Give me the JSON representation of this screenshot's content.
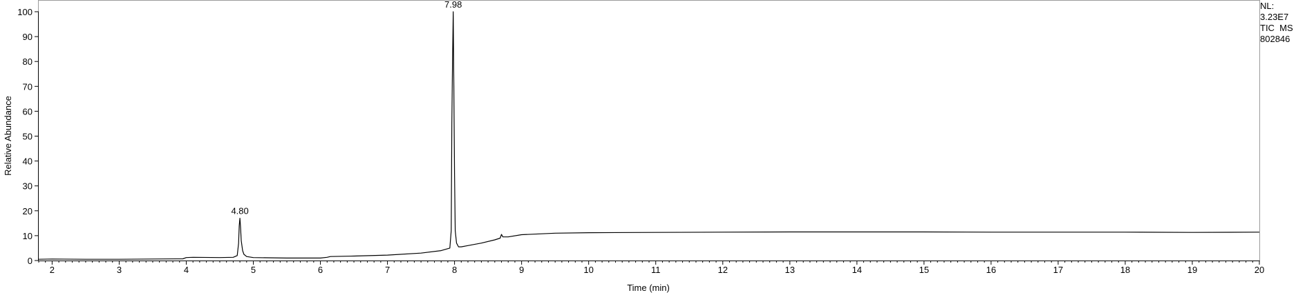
{
  "info": {
    "nl_label": "NL:",
    "nl_value": "3.23E7",
    "trace": "TIC  MS",
    "sample": "802846"
  },
  "chart_data": {
    "type": "line",
    "xlabel": "Time (min)",
    "ylabel": "Relative Abundance",
    "xlim": [
      1.8,
      20
    ],
    "ylim": [
      0,
      100
    ],
    "xticks": [
      2,
      3,
      4,
      5,
      6,
      7,
      8,
      9,
      10,
      11,
      12,
      13,
      14,
      15,
      16,
      17,
      18,
      19,
      20
    ],
    "yticks": [
      0,
      10,
      20,
      30,
      40,
      50,
      60,
      70,
      80,
      90,
      100
    ],
    "grid": false,
    "peak_labels": [
      {
        "x": 4.8,
        "y": 17,
        "text": "4.80"
      },
      {
        "x": 7.98,
        "y": 100,
        "text": "7.98"
      }
    ],
    "series": [
      {
        "x": [
          1.8,
          2.0,
          2.5,
          3.0,
          3.5,
          3.95,
          4.0,
          4.1,
          4.5,
          4.7,
          4.76,
          4.78,
          4.79,
          4.8,
          4.81,
          4.82,
          4.84,
          4.86,
          4.9,
          5.0,
          5.5,
          6.0,
          6.1,
          6.15,
          6.5,
          7.0,
          7.5,
          7.8,
          7.93,
          7.95,
          7.96,
          7.97,
          7.98,
          7.99,
          8.0,
          8.01,
          8.03,
          8.06,
          8.1,
          8.2,
          8.4,
          8.6,
          8.68,
          8.7,
          8.72,
          8.8,
          9.0,
          9.5,
          10.0,
          11.0,
          12.0,
          13.0,
          14.0,
          15.0,
          16.0,
          17.0,
          18.0,
          19.0,
          20.0
        ],
        "y": [
          0.5,
          0.6,
          0.5,
          0.5,
          0.6,
          0.7,
          1.2,
          1.3,
          1.2,
          1.3,
          2,
          7,
          14,
          17,
          13,
          8,
          4,
          2.5,
          1.6,
          1.2,
          1.0,
          1.0,
          1.3,
          1.6,
          1.8,
          2.2,
          3.0,
          4.0,
          5.0,
          12,
          55,
          80,
          100,
          70,
          35,
          12,
          7,
          5.5,
          5.5,
          6,
          7,
          8.3,
          9.0,
          10.5,
          9.5,
          9.5,
          10.4,
          11.0,
          11.2,
          11.3,
          11.4,
          11.5,
          11.5,
          11.5,
          11.4,
          11.4,
          11.4,
          11.3,
          11.4
        ]
      }
    ]
  }
}
